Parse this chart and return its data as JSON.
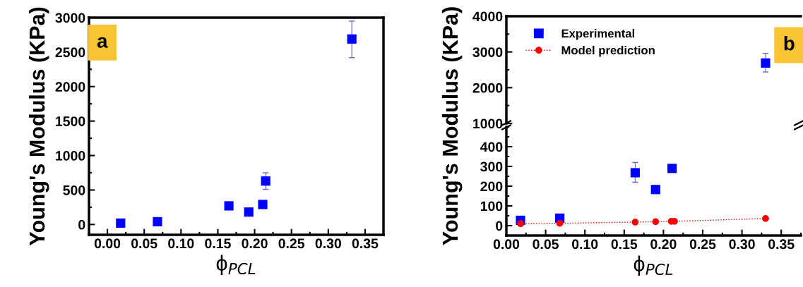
{
  "chart_data": [
    {
      "type": "scatter",
      "xlabel": "ϕ$_{PCL}$",
      "ylabel": "Young's Modulus (KPa)",
      "annotations": [
        "a"
      ],
      "marker": "square",
      "xlim": [
        -0.025,
        0.375
      ],
      "xticks": [
        {
          "value": 0,
          "label": "0.00"
        },
        0.05,
        {
          "value": 0.1,
          "label": "0.10"
        },
        0.15,
        {
          "value": 0.2,
          "label": "0.20"
        },
        0.25,
        {
          "value": 0.3,
          "label": "0.30"
        },
        0.35
      ],
      "ylim": [
        -150,
        3000
      ],
      "yticks": [
        0,
        500,
        1000,
        1500,
        2000,
        2500,
        3000
      ],
      "series": [
        {
          "color": "#0000ff",
          "x": [
            0.018,
            0.068,
            0.165,
            0.192,
            0.211,
            0.215,
            0.332
          ],
          "values": [
            20,
            40,
            270,
            180,
            290,
            630,
            2690
          ],
          "errors": [
            null,
            null,
            null,
            null,
            null,
            [
              510,
              750
            ],
            [
              2420,
              2950
            ]
          ]
        }
      ]
    },
    {
      "type": "scatter",
      "annotations": [
        "b"
      ],
      "marker": "square",
      "tick_labels": "y",
      "xlim": [
        0,
        0.375
      ],
      "ylim": [
        1000,
        4000
      ],
      "yticks": [
        1000,
        2000,
        3000,
        4000
      ],
      "series": [
        {
          "color": "#0000ff",
          "x": [
            0.33
          ],
          "values": [
            2690
          ],
          "errors": [
            [
              2440,
              2960
            ]
          ]
        }
      ]
    },
    {
      "type": "scatter",
      "xlabel": "ϕ$_{PCL}$",
      "ylabel": "Young's Modulus (KPa)",
      "legend": "top left",
      "xlim": [
        0,
        0.375
      ],
      "xticks": [
        {
          "value": 0,
          "label": "0.00"
        },
        0.05,
        {
          "value": 0.1,
          "label": "0.10"
        },
        0.15,
        {
          "value": 0.2,
          "label": "0.20"
        },
        0.25,
        {
          "value": 0.3,
          "label": "0.30"
        },
        0.35
      ],
      "ylim": [
        -50,
        500
      ],
      "yticks": [
        0,
        100,
        200,
        300,
        400
      ],
      "series": [
        {
          "name": "Experimental",
          "color": "#0000ff",
          "marker": "square",
          "x": [
            0.018,
            0.068,
            0.164,
            0.19,
            0.211
          ],
          "values": [
            27,
            38,
            268,
            183,
            290
          ],
          "errors": [
            null,
            null,
            [
              220,
              320
            ],
            null,
            null
          ]
        },
        {
          "name": "Model prediction",
          "type": "line",
          "color": "#ff0000",
          "line_style": "dotted",
          "marker": "circle",
          "x": [
            0.018,
            0.068,
            0.164,
            0.19,
            0.21,
            0.214,
            0.33
          ],
          "values": [
            10,
            12,
            18,
            20,
            22,
            22,
            36
          ]
        }
      ]
    }
  ]
}
